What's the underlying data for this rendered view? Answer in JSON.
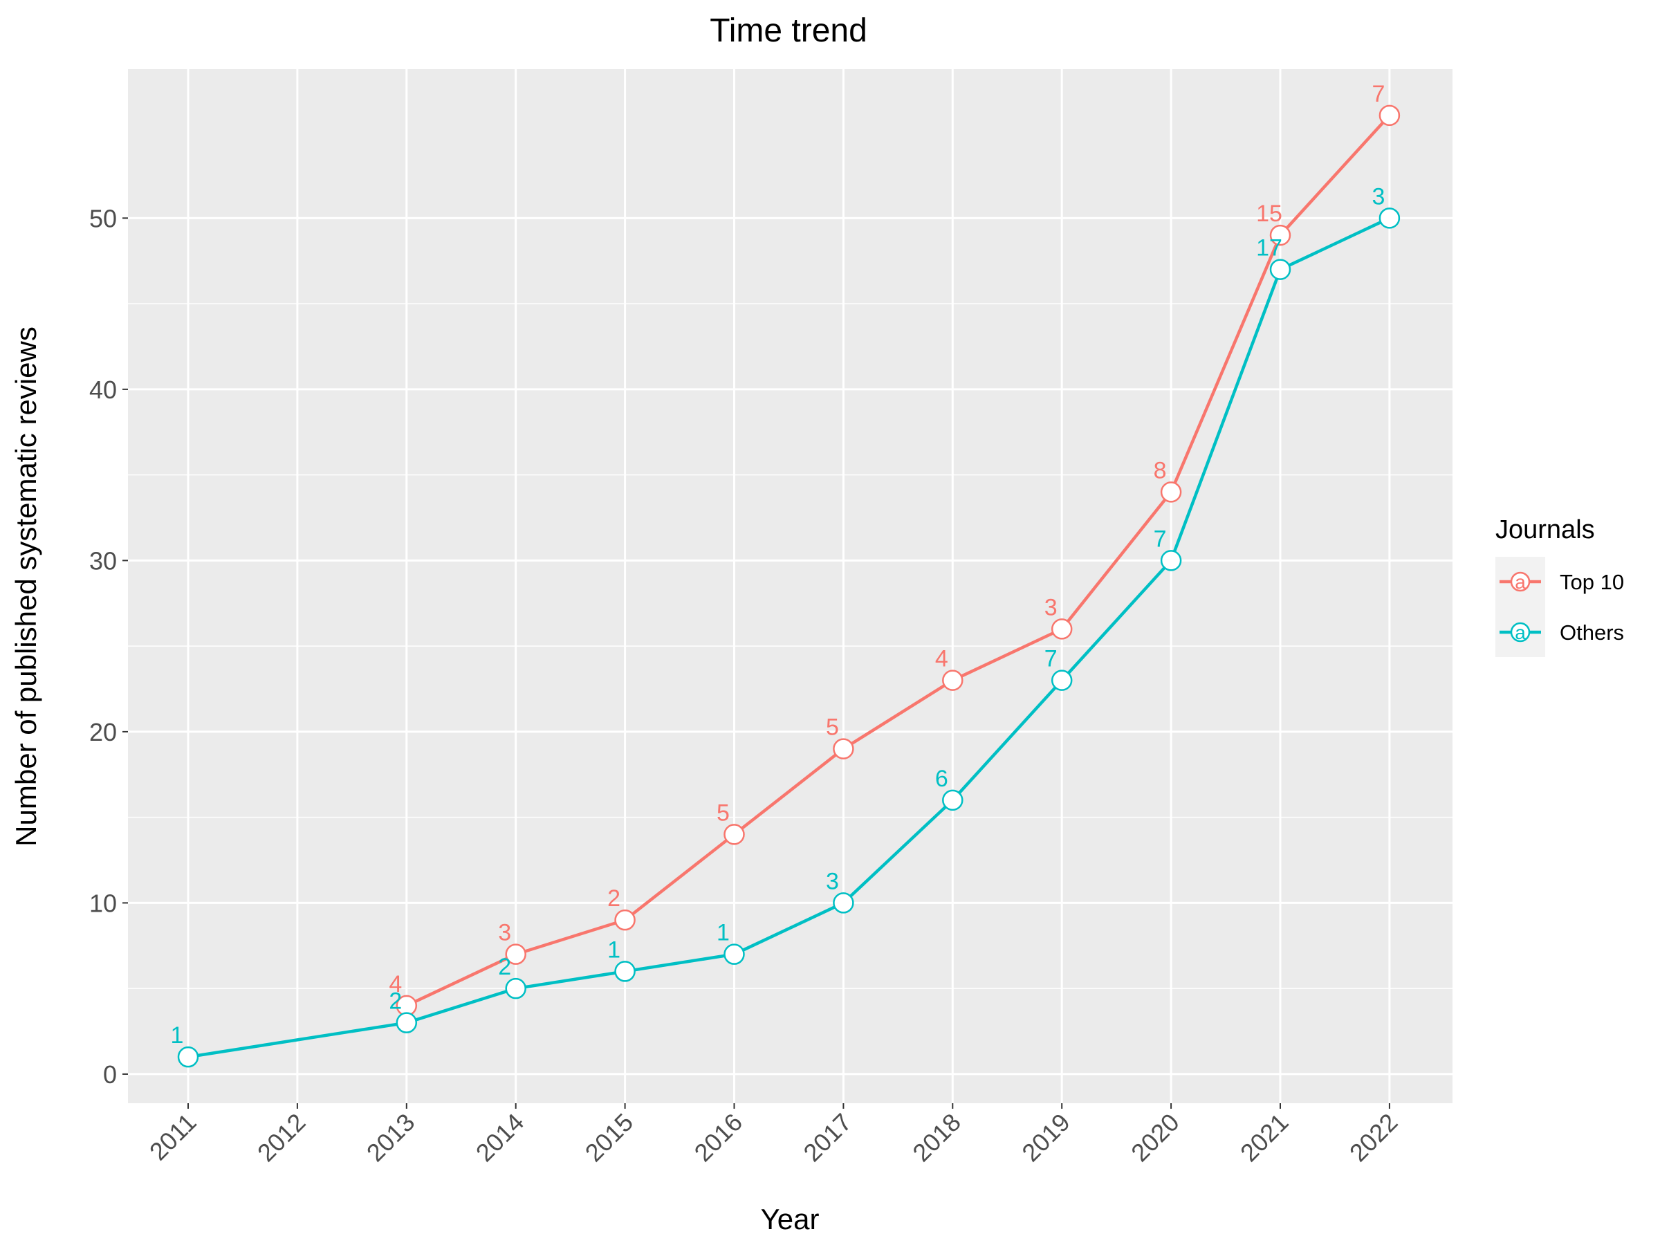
{
  "chart_data": {
    "type": "line",
    "title": "Time trend",
    "xlabel": "Year",
    "ylabel": "Number of published systematic reviews",
    "x": [
      "2011",
      "2012",
      "2013",
      "2014",
      "2015",
      "2016",
      "2017",
      "2018",
      "2019",
      "2020",
      "2021",
      "2022"
    ],
    "ylim": [
      -1.7,
      58.7
    ],
    "yticks": [
      0,
      10,
      20,
      30,
      40,
      50
    ],
    "grid": true,
    "legend": {
      "title": "Journals",
      "placement": "right"
    },
    "series": [
      {
        "name": "Top 10",
        "color": "#F8766D",
        "x": [
          "2013",
          "2014",
          "2015",
          "2016",
          "2017",
          "2018",
          "2019",
          "2020",
          "2021",
          "2022"
        ],
        "values": [
          4,
          7,
          9,
          14,
          19,
          23,
          26,
          34,
          49,
          56
        ],
        "labels": [
          "4",
          "3",
          "2",
          "5",
          "5",
          "4",
          "3",
          "8",
          "15",
          "7"
        ]
      },
      {
        "name": "Others",
        "color": "#00BFC4",
        "x": [
          "2011",
          "2013",
          "2014",
          "2015",
          "2016",
          "2017",
          "2018",
          "2019",
          "2020",
          "2021",
          "2022"
        ],
        "values": [
          1,
          3,
          5,
          6,
          7,
          10,
          16,
          23,
          30,
          47,
          50
        ],
        "labels": [
          "1",
          "2",
          "2",
          "1",
          "1",
          "3",
          "6",
          "7",
          "7",
          "17",
          "3"
        ]
      }
    ],
    "legend_key_glyph": "a"
  }
}
